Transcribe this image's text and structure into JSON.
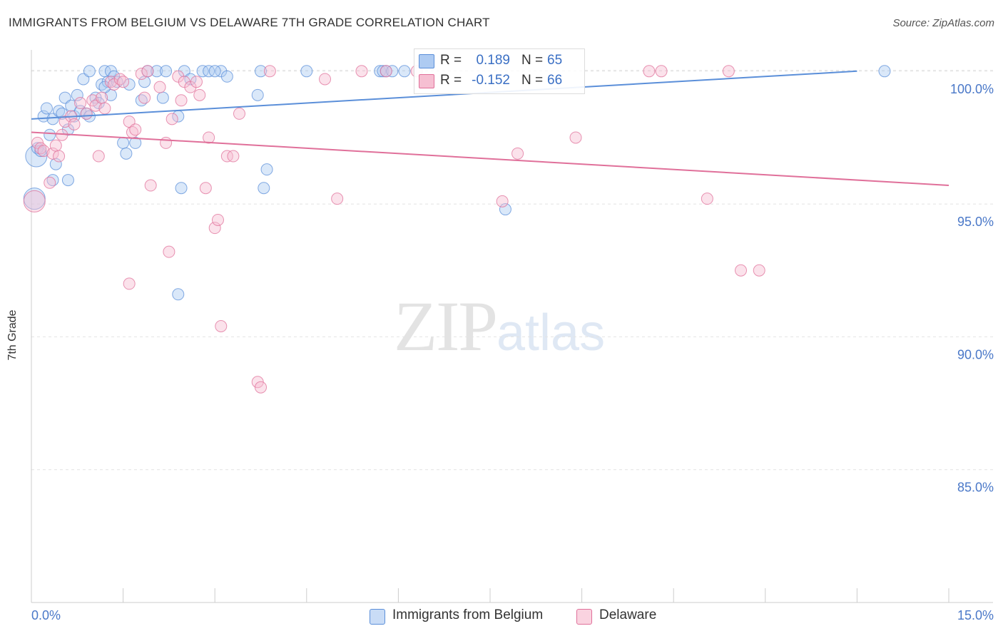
{
  "header": {
    "title": "IMMIGRANTS FROM BELGIUM VS DELAWARE 7TH GRADE CORRELATION CHART",
    "source": "Source: ZipAtlas.com"
  },
  "watermark": {
    "zip": "ZIP",
    "atlas": "atlas"
  },
  "colors": {
    "blue": "#5b8fd9",
    "blue_fill": "#aecbf2",
    "pink": "#e0709a",
    "pink_fill": "#f6bfd2",
    "axis_text": "#4a78c8",
    "grid": "#e2e2e2"
  },
  "legend": {
    "series": [
      {
        "r_label": "R =",
        "r_value": "0.189",
        "n_label": "N =",
        "n_value": "65"
      },
      {
        "r_label": "R =",
        "r_value": "-0.152",
        "n_label": "N =",
        "n_value": "66"
      }
    ]
  },
  "bottom_legend": [
    "Immigrants from Belgium",
    "Delaware"
  ],
  "chart_data": {
    "type": "scatter",
    "title": "IMMIGRANTS FROM BELGIUM VS DELAWARE 7TH GRADE CORRELATION CHART",
    "xlabel": "",
    "ylabel": "7th Grade",
    "xlim": [
      0.0,
      15.0
    ],
    "ylim": [
      80.0,
      100.8
    ],
    "x_tick_labels": [
      "0.0%",
      "15.0%"
    ],
    "y_ticks": [
      85.0,
      90.0,
      95.0,
      100.0
    ],
    "y_tick_labels": [
      "85.0%",
      "90.0%",
      "95.0%",
      "100.0%"
    ],
    "grid": true,
    "series": [
      {
        "name": "Immigrants from Belgium",
        "color": "#5b8fd9",
        "trend": {
          "x": [
            0.0,
            13.5
          ],
          "y": [
            98.2,
            100.0
          ]
        },
        "points": [
          [
            0.05,
            95.2
          ],
          [
            0.08,
            96.8
          ],
          [
            0.1,
            97.1
          ],
          [
            0.15,
            97.0
          ],
          [
            0.2,
            98.3
          ],
          [
            0.25,
            98.6
          ],
          [
            0.3,
            97.6
          ],
          [
            0.35,
            95.9
          ],
          [
            0.35,
            98.2
          ],
          [
            0.4,
            96.5
          ],
          [
            0.45,
            98.5
          ],
          [
            0.5,
            98.4
          ],
          [
            0.55,
            99.0
          ],
          [
            0.6,
            95.9
          ],
          [
            0.6,
            97.8
          ],
          [
            0.65,
            98.7
          ],
          [
            0.7,
            98.3
          ],
          [
            0.75,
            99.1
          ],
          [
            0.8,
            98.5
          ],
          [
            0.85,
            99.7
          ],
          [
            0.9,
            98.4
          ],
          [
            0.95,
            100.0
          ],
          [
            0.95,
            98.3
          ],
          [
            1.05,
            99.0
          ],
          [
            1.1,
            98.8
          ],
          [
            1.15,
            99.5
          ],
          [
            1.2,
            100.0
          ],
          [
            1.25,
            99.6
          ],
          [
            1.3,
            100.0
          ],
          [
            1.3,
            99.1
          ],
          [
            1.35,
            99.8
          ],
          [
            1.4,
            99.6
          ],
          [
            1.5,
            97.3
          ],
          [
            1.55,
            96.9
          ],
          [
            1.6,
            99.5
          ],
          [
            1.7,
            97.3
          ],
          [
            1.8,
            98.9
          ],
          [
            1.85,
            99.6
          ],
          [
            1.9,
            100.0
          ],
          [
            2.05,
            100.0
          ],
          [
            2.15,
            99.0
          ],
          [
            2.2,
            100.0
          ],
          [
            2.4,
            98.3
          ],
          [
            2.45,
            95.6
          ],
          [
            2.4,
            91.6
          ],
          [
            2.5,
            100.0
          ],
          [
            2.6,
            99.7
          ],
          [
            2.8,
            100.0
          ],
          [
            2.9,
            100.0
          ],
          [
            3.1,
            100.0
          ],
          [
            3.2,
            99.8
          ],
          [
            3.0,
            100.0
          ],
          [
            3.7,
            99.1
          ],
          [
            3.75,
            100.0
          ],
          [
            3.8,
            95.6
          ],
          [
            3.85,
            96.3
          ],
          [
            4.5,
            100.0
          ],
          [
            5.7,
            100.0
          ],
          [
            5.75,
            100.0
          ],
          [
            5.8,
            100.0
          ],
          [
            5.9,
            100.0
          ],
          [
            6.1,
            100.0
          ],
          [
            7.75,
            94.8
          ],
          [
            13.95,
            100.0
          ],
          [
            1.2,
            99.4
          ]
        ]
      },
      {
        "name": "Delaware",
        "color": "#e0709a",
        "trend": {
          "x": [
            0.0,
            15.0
          ],
          "y": [
            97.7,
            95.7
          ]
        },
        "points": [
          [
            0.05,
            95.1
          ],
          [
            0.1,
            97.3
          ],
          [
            0.15,
            97.1
          ],
          [
            0.2,
            97.0
          ],
          [
            0.3,
            95.8
          ],
          [
            0.35,
            96.9
          ],
          [
            0.4,
            97.2
          ],
          [
            0.45,
            96.8
          ],
          [
            0.5,
            97.6
          ],
          [
            0.55,
            98.1
          ],
          [
            0.65,
            98.3
          ],
          [
            0.7,
            98.0
          ],
          [
            0.8,
            98.8
          ],
          [
            0.9,
            98.4
          ],
          [
            1.0,
            98.9
          ],
          [
            1.05,
            98.7
          ],
          [
            1.1,
            96.8
          ],
          [
            1.15,
            99.0
          ],
          [
            1.2,
            98.6
          ],
          [
            1.3,
            99.6
          ],
          [
            1.35,
            99.5
          ],
          [
            1.45,
            99.7
          ],
          [
            1.5,
            99.6
          ],
          [
            1.6,
            98.1
          ],
          [
            1.6,
            92.0
          ],
          [
            1.65,
            97.7
          ],
          [
            1.7,
            97.8
          ],
          [
            1.8,
            99.9
          ],
          [
            1.85,
            99.0
          ],
          [
            1.9,
            100.0
          ],
          [
            1.95,
            95.7
          ],
          [
            2.1,
            99.4
          ],
          [
            2.2,
            97.3
          ],
          [
            2.25,
            93.2
          ],
          [
            2.3,
            98.2
          ],
          [
            2.4,
            99.8
          ],
          [
            2.45,
            98.9
          ],
          [
            2.5,
            99.6
          ],
          [
            2.6,
            99.4
          ],
          [
            2.7,
            99.6
          ],
          [
            2.75,
            99.1
          ],
          [
            2.85,
            95.6
          ],
          [
            2.9,
            97.5
          ],
          [
            3.0,
            94.1
          ],
          [
            3.05,
            94.4
          ],
          [
            3.1,
            90.4
          ],
          [
            3.2,
            96.8
          ],
          [
            3.3,
            96.8
          ],
          [
            3.4,
            98.4
          ],
          [
            3.7,
            88.3
          ],
          [
            3.75,
            88.1
          ],
          [
            3.9,
            100.0
          ],
          [
            4.8,
            99.7
          ],
          [
            5.0,
            95.2
          ],
          [
            5.4,
            100.0
          ],
          [
            5.8,
            100.0
          ],
          [
            6.3,
            100.0
          ],
          [
            7.7,
            95.1
          ],
          [
            7.95,
            96.9
          ],
          [
            8.9,
            97.5
          ],
          [
            10.1,
            100.0
          ],
          [
            10.3,
            100.0
          ],
          [
            11.05,
            95.2
          ],
          [
            11.4,
            100.0
          ],
          [
            11.6,
            92.5
          ],
          [
            11.9,
            92.5
          ]
        ]
      }
    ]
  }
}
